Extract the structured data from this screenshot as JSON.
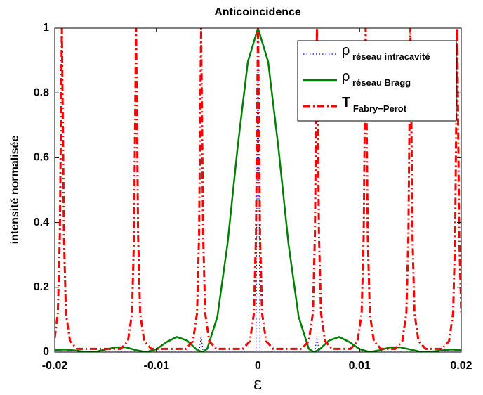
{
  "chart_data": {
    "type": "line",
    "title": "Anticoincidence",
    "x_label": "ε",
    "y_label": "intensité normalisée",
    "xlim": [
      -0.02,
      0.02
    ],
    "ylim": [
      0,
      1
    ],
    "xticks": [
      -0.02,
      -0.01,
      0,
      0.01,
      0.02
    ],
    "yticks": [
      0,
      0.2,
      0.4,
      0.6,
      0.8,
      1
    ],
    "grid": false,
    "legend": "upper right",
    "series": [
      {
        "name": "ρ réseau intracavité",
        "color": "#0000ff",
        "style": "dotted",
        "x": [
          -0.02,
          -0.0058,
          -0.0056,
          -0.0054,
          -0.0002,
          0,
          0.0002,
          0.0056,
          0.0058,
          0.006,
          0.02
        ],
        "values": [
          0,
          0,
          0.05,
          0,
          0,
          1,
          0,
          0,
          0.05,
          0,
          0
        ]
      },
      {
        "name": "ρ réseau Bragg",
        "color": "#008000",
        "style": "solid",
        "x": [
          -0.02,
          -0.019,
          -0.018,
          -0.017,
          -0.016,
          -0.015,
          -0.014,
          -0.013,
          -0.012,
          -0.011,
          -0.01,
          -0.009,
          -0.008,
          -0.007,
          -0.006,
          -0.0055,
          -0.005,
          -0.004,
          -0.003,
          -0.002,
          -0.001,
          0,
          0.001,
          0.002,
          0.003,
          0.004,
          0.005,
          0.0055,
          0.006,
          0.007,
          0.008,
          0.009,
          0.01,
          0.011,
          0.012,
          0.013,
          0.014,
          0.015,
          0.016,
          0.017,
          0.018,
          0.019,
          0.02
        ],
        "values": [
          0.006,
          0.008,
          0.005,
          0.001,
          0.001,
          0.008,
          0.015,
          0.015,
          0.006,
          0,
          0.009,
          0.031,
          0.047,
          0.036,
          0.007,
          0,
          0.01,
          0.109,
          0.334,
          0.634,
          0.896,
          1,
          0.896,
          0.634,
          0.334,
          0.109,
          0.01,
          0,
          0.007,
          0.036,
          0.047,
          0.031,
          0.009,
          0,
          0.006,
          0.015,
          0.015,
          0.008,
          0.001,
          0.001,
          0.005,
          0.008,
          0.006
        ]
      },
      {
        "name": "T Fabry−Perot",
        "color": "#ff0000",
        "style": "dashdot",
        "x": [
          -0.02,
          -0.0197,
          -0.0195,
          -0.0194,
          -0.0193,
          -0.0192,
          -0.0191,
          -0.0189,
          -0.0185,
          -0.0178,
          -0.0135,
          -0.0128,
          -0.0124,
          -0.0122,
          -0.0121,
          -0.012,
          -0.0119,
          -0.0118,
          -0.0116,
          -0.0112,
          -0.0105,
          -0.0071,
          -0.0064,
          -0.006,
          -0.0058,
          -0.0057,
          -0.0056,
          -0.0055,
          -0.0054,
          -0.0052,
          -0.0048,
          -0.0041,
          -0.0015,
          -0.0008,
          -0.0004,
          -0.0002,
          -0.0001,
          0,
          0.0001,
          0.0002,
          0.0004,
          0.0008,
          0.0015,
          0.0043,
          0.005,
          0.0054,
          0.0056,
          0.0057,
          0.0058,
          0.0059,
          0.006,
          0.0062,
          0.0066,
          0.0073,
          0.0091,
          0.0098,
          0.0102,
          0.0104,
          0.0105,
          0.0106,
          0.0107,
          0.0108,
          0.011,
          0.0114,
          0.0121,
          0.0135,
          0.0142,
          0.0146,
          0.0148,
          0.0149,
          0.015,
          0.0151,
          0.0152,
          0.0154,
          0.0158,
          0.0165,
          0.0181,
          0.0188,
          0.0192,
          0.0194,
          0.0195,
          0.0196,
          0.0197,
          0.0198,
          0.02
        ],
        "values": [
          0.044,
          0.12,
          0.36,
          0.69,
          1,
          0.69,
          0.36,
          0.12,
          0.034,
          0.01,
          0.01,
          0.034,
          0.12,
          0.36,
          0.69,
          1,
          0.69,
          0.36,
          0.12,
          0.034,
          0.01,
          0.01,
          0.034,
          0.12,
          0.36,
          0.69,
          1,
          0.69,
          0.36,
          0.12,
          0.034,
          0.01,
          0.01,
          0.034,
          0.12,
          0.36,
          0.69,
          1,
          0.69,
          0.36,
          0.12,
          0.034,
          0.01,
          0.01,
          0.034,
          0.12,
          0.36,
          0.69,
          1,
          0.69,
          0.36,
          0.12,
          0.034,
          0.01,
          0.01,
          0.034,
          0.12,
          0.36,
          0.69,
          1,
          0.69,
          0.36,
          0.12,
          0.034,
          0.01,
          0.01,
          0.034,
          0.12,
          0.36,
          0.69,
          1,
          0.69,
          0.36,
          0.12,
          0.034,
          0.01,
          0.01,
          0.034,
          0.12,
          0.36,
          0.69,
          1,
          0.69,
          0.36,
          0.12
        ]
      }
    ]
  }
}
